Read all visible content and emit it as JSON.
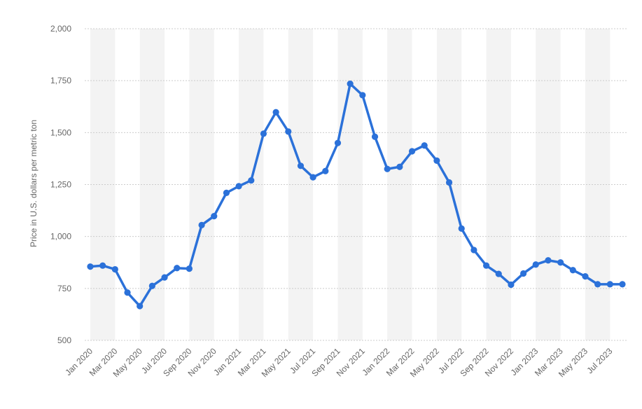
{
  "chart_data": {
    "type": "line",
    "title": "",
    "xlabel": "",
    "ylabel": "Price in U.S. dollars per metric ton",
    "ylim": [
      500,
      2000
    ],
    "y_ticks": [
      "500",
      "750",
      "1,000",
      "1,250",
      "1,500",
      "1,750",
      "2,000"
    ],
    "y_tick_values": [
      500,
      750,
      1000,
      1250,
      1500,
      1750,
      2000
    ],
    "x_tick_labels": [
      "Jan 2020",
      "Mar 2020",
      "May 2020",
      "Jul 2020",
      "Sep 2020",
      "Nov 2020",
      "Jan 2021",
      "Mar 2021",
      "May 2021",
      "Jul 2021",
      "Sep 2021",
      "Nov 2021",
      "Jan 2022",
      "Mar 2022",
      "May 2022",
      "Jul 2022",
      "Sep 2022",
      "Nov 2022",
      "Jan 2023",
      "Mar 2023",
      "May 2023",
      "Jul 2023"
    ],
    "grid": true,
    "legend": "none",
    "series": [
      {
        "color": "#2b71d9",
        "x": [
          "Jan 2020",
          "Feb 2020",
          "Mar 2020",
          "Apr 2020",
          "May 2020",
          "Jun 2020",
          "Jul 2020",
          "Aug 2020",
          "Sep 2020",
          "Oct 2020",
          "Nov 2020",
          "Dec 2020",
          "Jan 2021",
          "Feb 2021",
          "Mar 2021",
          "Apr 2021",
          "May 2021",
          "Jun 2021",
          "Jul 2021",
          "Aug 2021",
          "Sep 2021",
          "Oct 2021",
          "Nov 2021",
          "Dec 2021",
          "Jan 2022",
          "Feb 2022",
          "Mar 2022",
          "Apr 2022",
          "May 2022",
          "Jun 2022",
          "Jul 2022",
          "Aug 2022",
          "Sep 2022",
          "Oct 2022",
          "Nov 2022",
          "Dec 2022",
          "Jan 2023",
          "Feb 2023",
          "Mar 2023",
          "Apr 2023",
          "May 2023",
          "Jun 2023",
          "Jul 2023",
          "Aug 2023"
        ],
        "values": [
          855,
          860,
          842,
          730,
          665,
          762,
          803,
          848,
          845,
          1055,
          1098,
          1210,
          1242,
          1270,
          1495,
          1598,
          1505,
          1340,
          1285,
          1315,
          1450,
          1735,
          1680,
          1480,
          1325,
          1335,
          1410,
          1438,
          1365,
          1260,
          1038,
          935,
          860,
          820,
          768,
          822,
          865,
          885,
          875,
          838,
          808,
          770,
          770,
          770
        ]
      }
    ]
  },
  "colors": {
    "line": "#2b71d9",
    "band": "#f3f3f3",
    "grid": "#cccccc",
    "text": "#666666"
  }
}
